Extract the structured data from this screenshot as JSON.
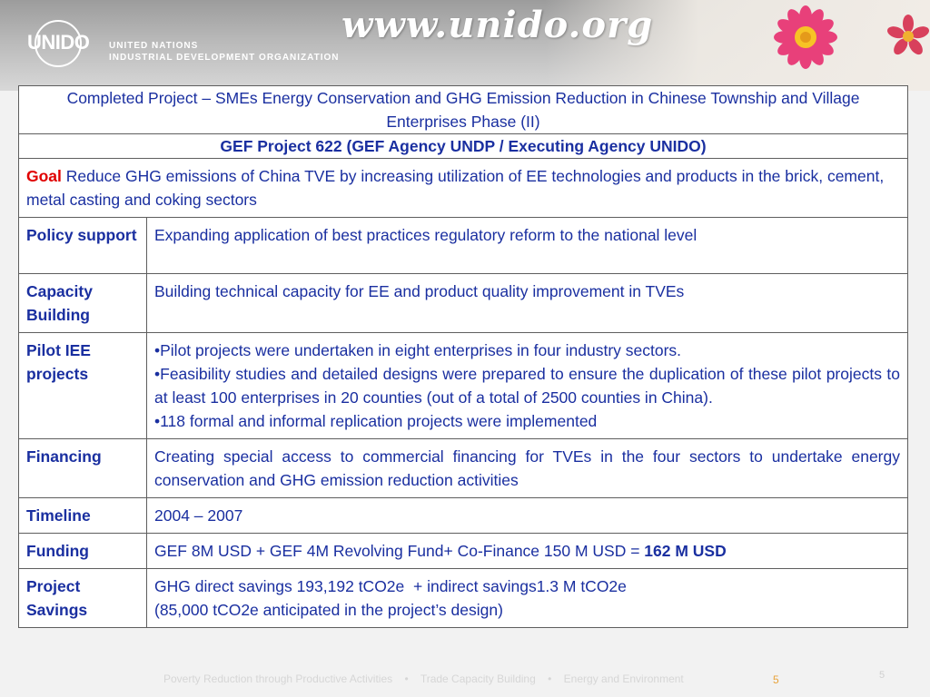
{
  "header": {
    "logo_text": "UNIDO",
    "org_line1": "UNITED NATIONS",
    "org_line2": "INDUSTRIAL DEVELOPMENT ORGANIZATION",
    "url": "www.unido.org"
  },
  "table": {
    "title": "Completed Project – SMEs Energy Conservation and GHG Emission Reduction in Chinese Township and Village Enterprises Phase (II)",
    "subtitle": "GEF Project 622 (GEF Agency UNDP / Executing Agency UNIDO)",
    "goal": {
      "label": "Goal",
      "text": "Reduce GHG emissions of China TVE by increasing utilization of EE technologies and products in the brick, cement, metal casting and coking sectors"
    },
    "rows": {
      "policy": {
        "label": "Policy support",
        "text": "Expanding application of best practices regulatory reform to the national level"
      },
      "capacity": {
        "label": "Capacity Building",
        "text": "Building technical capacity for EE and product quality improvement in TVEs"
      },
      "pilot": {
        "label": "Pilot IEE projects",
        "bullets": [
          "•Pilot projects were undertaken in eight enterprises in four industry sectors.",
          "•Feasibility studies and detailed designs were prepared to ensure the duplication of these pilot projects to at least 100 enterprises in 20 counties (out of a total of 2500 counties in China).",
          "•118 formal and informal replication projects were implemented"
        ]
      },
      "financing": {
        "label": "Financing",
        "text": "Creating special access to commercial financing for TVEs in the four sectors to undertake energy conservation and GHG emission reduction activities"
      },
      "timeline": {
        "label": "Timeline",
        "text": "2004 – 2007"
      },
      "funding": {
        "label": "Funding",
        "text": "GEF 8M USD + GEF 4M Revolving Fund+ Co-Finance 150 M USD = ",
        "total": "162 M USD"
      },
      "savings": {
        "label": "Project Savings",
        "line1": "GHG direct savings 193,192 tCO2e  + indirect savings1.3 M tCO2e",
        "line2": "(85,000 tCO2e anticipated in the project’s design)"
      }
    }
  },
  "footer": {
    "items": [
      "Poverty Reduction through Productive Activities",
      "Trade Capacity Building",
      "Energy and Environment"
    ],
    "separator": "•",
    "page_number": "5",
    "corner_number": "5"
  },
  "colors": {
    "text_blue": "#1a2fa0",
    "label_red": "#e00000",
    "border": "#5e5e5e",
    "page_number": "#e8a33a"
  }
}
